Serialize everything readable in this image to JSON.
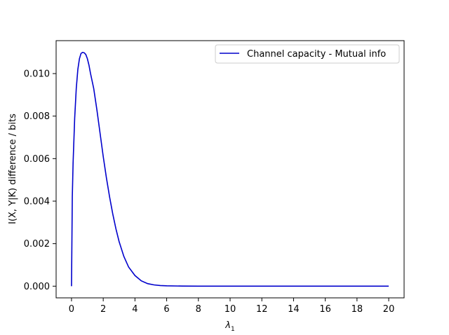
{
  "chart_data": {
    "type": "line",
    "title": "",
    "xlabel_symbol": "λ",
    "xlabel_subscript": "1",
    "ylabel": "I(X, Y|K) difference / bits",
    "xlim": [
      -0.97,
      20.97
    ],
    "ylim": [
      -0.00055,
      0.01155
    ],
    "xticks": [
      0,
      2,
      4,
      6,
      8,
      10,
      12,
      14,
      16,
      18,
      20
    ],
    "xtick_labels": [
      "0",
      "2",
      "4",
      "6",
      "8",
      "10",
      "12",
      "14",
      "16",
      "18",
      "20"
    ],
    "yticks": [
      0.0,
      0.002,
      0.004,
      0.006,
      0.008,
      0.01
    ],
    "ytick_labels": [
      "0.000",
      "0.002",
      "0.004",
      "0.006",
      "0.008",
      "0.010"
    ],
    "grid": false,
    "legend_position": "top-right",
    "series": [
      {
        "name": "Channel capacity - Mutual info",
        "color": "#0000cc",
        "x": [
          0,
          0.05,
          0.1,
          0.2,
          0.3,
          0.4,
          0.5,
          0.6,
          0.7,
          0.8,
          0.9,
          1.0,
          1.1,
          1.2,
          1.4,
          1.6,
          1.8,
          2.0,
          2.2,
          2.4,
          2.6,
          2.8,
          3.0,
          3.3,
          3.6,
          4.0,
          4.4,
          4.8,
          5.2,
          5.6,
          6.0,
          7.0,
          8.0,
          10,
          12,
          14,
          16,
          18,
          20
        ],
        "y": [
          0.0,
          0.0042,
          0.0058,
          0.0079,
          0.0093,
          0.0102,
          0.0107,
          0.01095,
          0.011,
          0.01098,
          0.0109,
          0.0107,
          0.0104,
          0.01,
          0.0093,
          0.0083,
          0.0072,
          0.0061,
          0.0051,
          0.0042,
          0.0034,
          0.0027,
          0.0021,
          0.0014,
          0.0009,
          0.0005,
          0.00025,
          0.00012,
          6e-05,
          3e-05,
          1.5e-05,
          4e-06,
          1e-06,
          0.0,
          0.0,
          0.0,
          0.0,
          0.0,
          0.0
        ]
      }
    ]
  }
}
